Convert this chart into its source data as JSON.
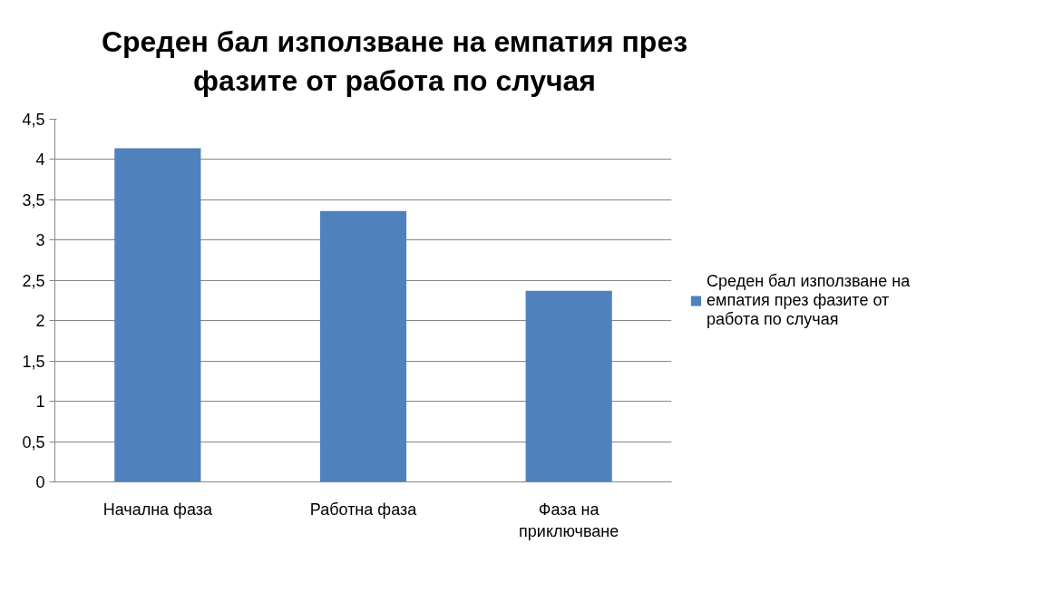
{
  "chart_data": {
    "type": "bar",
    "title": "Среден бал използване на емпатия през фазите от работа по случая",
    "categories": [
      "Начална фаза",
      "Работна фаза",
      "Фаза на приключване"
    ],
    "series": [
      {
        "name": "Среден бал използване на емпатия през фазите от работа по случая",
        "color": "#4f81bd",
        "values": [
          4.14,
          3.36,
          2.37
        ]
      }
    ],
    "ylim": [
      0,
      4.5
    ],
    "yticks": [
      {
        "value": 0,
        "label": "0"
      },
      {
        "value": 0.5,
        "label": "0,5"
      },
      {
        "value": 1,
        "label": "1"
      },
      {
        "value": 1.5,
        "label": "1,5"
      },
      {
        "value": 2,
        "label": "2"
      },
      {
        "value": 2.5,
        "label": "2,5"
      },
      {
        "value": 3,
        "label": "3"
      },
      {
        "value": 3.5,
        "label": "3,5"
      },
      {
        "value": 4,
        "label": "4"
      },
      {
        "value": 4.5,
        "label": "4,5"
      }
    ],
    "grid": "y",
    "legend": "right"
  }
}
